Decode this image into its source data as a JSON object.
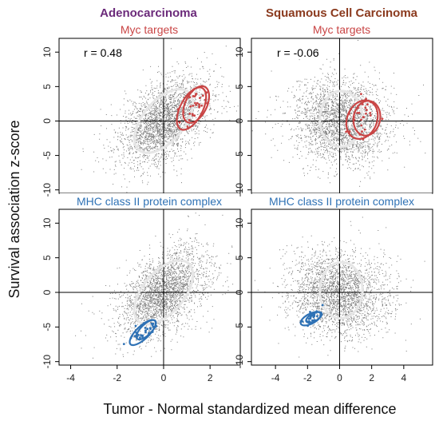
{
  "figure": {
    "ylabel": "Survival association z-score",
    "xlabel": "Tumor - Normal standardized mean difference",
    "columns": [
      {
        "title": "Adenocarcinoma",
        "color": "#6b2a7a"
      },
      {
        "title": "Squamous Cell Carcinoma",
        "color": "#8b3a1e"
      }
    ],
    "colors": {
      "myc": "#c94545",
      "mhc": "#2f72b5",
      "cloud": "#111111",
      "ellipse_main": "#e6e6e6"
    }
  },
  "chart_data": [
    {
      "type": "scatter",
      "panel": "Adenocarcinoma / Myc targets",
      "title": "Myc targets",
      "annotation": "r = 0.48",
      "xlim": [
        -4.5,
        3.3
      ],
      "ylim": [
        -10.5,
        12
      ],
      "xticks": [
        -4,
        -2,
        0,
        2
      ],
      "yticks": [
        -10,
        -5,
        0,
        5,
        10
      ],
      "cloud": {
        "center": [
          0,
          0
        ],
        "correlation": 0.48,
        "sd_x": 0.85,
        "sd_y": 3.2
      },
      "main_ellipse": {
        "center": [
          0,
          0
        ],
        "sd_x": 0.9,
        "sd_y": 3.3,
        "rho": 0.55
      },
      "highlight_series": [
        {
          "color": "#c94545",
          "center": [
            1.2,
            1.8
          ],
          "sd_x": 0.45,
          "sd_y": 2.2,
          "rho": 0.55
        },
        {
          "color": "#c94545",
          "center": [
            1.4,
            2.4
          ],
          "sd_x": 0.4,
          "sd_y": 1.9,
          "rho": 0.45
        }
      ],
      "grid": false
    },
    {
      "type": "scatter",
      "panel": "Squamous Cell Carcinoma / Myc targets",
      "title": "Myc targets",
      "annotation": "r = -0.06",
      "xlim": [
        -5.5,
        5.8
      ],
      "ylim": [
        -10.5,
        12
      ],
      "xticks": [
        -4,
        -2,
        0,
        2,
        4
      ],
      "yticks": [
        -10,
        -5,
        0,
        5,
        10
      ],
      "cloud": {
        "center": [
          0,
          0
        ],
        "correlation": -0.06,
        "sd_x": 1.4,
        "sd_y": 3.1
      },
      "main_ellipse": {
        "center": [
          0.1,
          0.3
        ],
        "sd_x": 0.95,
        "sd_y": 2.9,
        "rho": 0.02
      },
      "highlight_series": [
        {
          "color": "#c94545",
          "center": [
            1.4,
            0.2
          ],
          "sd_x": 0.7,
          "sd_y": 2.0,
          "rho": 0.2
        },
        {
          "color": "#c94545",
          "center": [
            1.7,
            0.4
          ],
          "sd_x": 0.6,
          "sd_y": 1.8,
          "rho": 0.1
        }
      ],
      "grid": false
    },
    {
      "type": "scatter",
      "panel": "Adenocarcinoma / MHC class II protein complex",
      "title": "MHC class II protein complex",
      "xlim": [
        -4.5,
        3.3
      ],
      "ylim": [
        -10.5,
        12
      ],
      "xticks": [
        -4,
        -2,
        0,
        2
      ],
      "yticks": [
        -10,
        -5,
        0,
        5,
        10
      ],
      "cloud": {
        "center": [
          0,
          0
        ],
        "correlation": 0.48,
        "sd_x": 0.85,
        "sd_y": 3.2
      },
      "main_ellipse": {
        "center": [
          0,
          0
        ],
        "sd_x": 0.9,
        "sd_y": 3.3,
        "rho": 0.55
      },
      "highlight_series": [
        {
          "color": "#2f72b5",
          "center": [
            -0.9,
            -5.8
          ],
          "sd_x": 0.4,
          "sd_y": 1.3,
          "rho": 0.75
        },
        {
          "color": "#2f72b5",
          "center": [
            -0.75,
            -5.4
          ],
          "sd_x": 0.3,
          "sd_y": 1.0,
          "rho": 0.7
        }
      ],
      "grid": false
    },
    {
      "type": "scatter",
      "panel": "Squamous Cell Carcinoma / MHC class II protein complex",
      "title": "MHC class II protein complex",
      "xlim": [
        -5.5,
        5.8
      ],
      "ylim": [
        -10.5,
        12
      ],
      "xticks": [
        -4,
        -2,
        0,
        2,
        4
      ],
      "yticks": [
        -10,
        -5,
        0,
        5,
        10
      ],
      "cloud": {
        "center": [
          0,
          0
        ],
        "correlation": -0.06,
        "sd_x": 1.4,
        "sd_y": 3.1
      },
      "main_ellipse": {
        "center": [
          0.1,
          0.3
        ],
        "sd_x": 0.95,
        "sd_y": 2.9,
        "rho": 0.02
      },
      "highlight_series": [
        {
          "color": "#2f72b5",
          "center": [
            -1.8,
            -3.8
          ],
          "sd_x": 0.45,
          "sd_y": 0.7,
          "rho": 0.6
        },
        {
          "color": "#2f72b5",
          "center": [
            -1.6,
            -3.6
          ],
          "sd_x": 0.35,
          "sd_y": 0.55,
          "rho": 0.6
        }
      ],
      "grid": false
    }
  ]
}
